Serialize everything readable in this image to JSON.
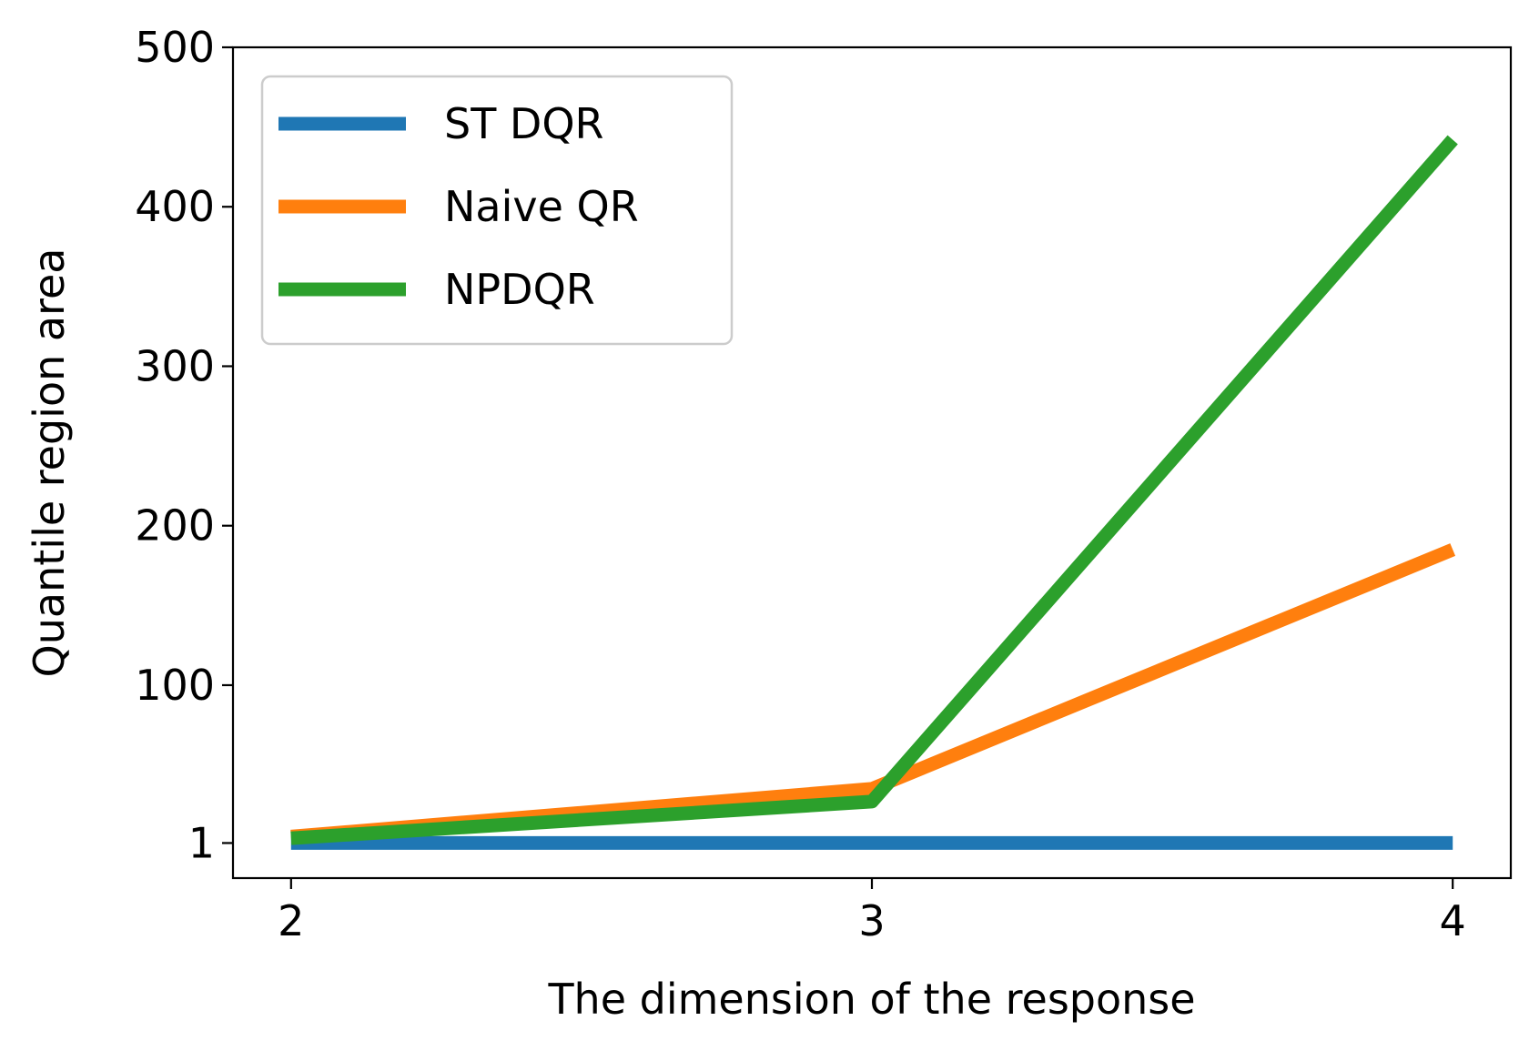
{
  "chart_data": {
    "type": "line",
    "xlabel": "The dimension of the response",
    "ylabel": "Quantile region area",
    "x": [
      2,
      3,
      4
    ],
    "xticks": [
      2,
      3,
      4
    ],
    "xtick_labels": [
      "2",
      "3",
      "4"
    ],
    "yticks": [
      1,
      100,
      200,
      300,
      400,
      500
    ],
    "ytick_labels": [
      "1",
      "100",
      "200",
      "300",
      "400",
      "500"
    ],
    "xlim": [
      1.9,
      4.1
    ],
    "ylim": [
      -21,
      500
    ],
    "grid": false,
    "legend_position": "top-left",
    "series": [
      {
        "name": "ST DQR",
        "color": "#1f77b4",
        "values": [
          1,
          1,
          1
        ]
      },
      {
        "name": "Naive QR",
        "color": "#ff7f0e",
        "values": [
          5,
          35,
          185
        ]
      },
      {
        "name": "NPDQR",
        "color": "#2ca02c",
        "values": [
          4,
          27,
          442
        ]
      }
    ]
  }
}
